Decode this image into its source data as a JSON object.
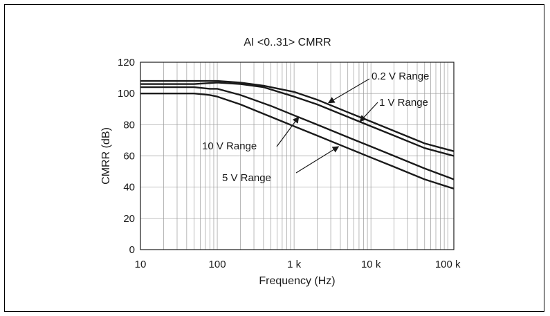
{
  "chart_data": {
    "type": "line",
    "title": "AI <0..31> CMRR",
    "xlabel": "Frequency (Hz)",
    "ylabel": "CMRR (dB)",
    "xscale": "log",
    "xlim": [
      10,
      120000
    ],
    "ylim": [
      0,
      120
    ],
    "grid": true,
    "x_ticks": [
      {
        "value": 10,
        "label": "10"
      },
      {
        "value": 100,
        "label": "100"
      },
      {
        "value": 1000,
        "label": "1 k"
      },
      {
        "value": 10000,
        "label": "10 k"
      },
      {
        "value": 100000,
        "label": "100 k"
      }
    ],
    "y_ticks": [
      {
        "value": 0,
        "label": "0"
      },
      {
        "value": 20,
        "label": "20"
      },
      {
        "value": 40,
        "label": "40"
      },
      {
        "value": 60,
        "label": "60"
      },
      {
        "value": 80,
        "label": "80"
      },
      {
        "value": 100,
        "label": "100"
      },
      {
        "value": 120,
        "label": "120"
      }
    ],
    "series": [
      {
        "name": "0.2 V Range",
        "color": "#1a1a1a",
        "points": [
          [
            10,
            108
          ],
          [
            50,
            108
          ],
          [
            100,
            108
          ],
          [
            200,
            107
          ],
          [
            400,
            105
          ],
          [
            1000,
            101
          ],
          [
            2000,
            96
          ],
          [
            5000,
            88
          ],
          [
            10000,
            82
          ],
          [
            20000,
            76
          ],
          [
            50000,
            68
          ],
          [
            120000,
            63
          ]
        ]
      },
      {
        "name": "1 V Range",
        "color": "#1a1a1a",
        "points": [
          [
            10,
            106
          ],
          [
            50,
            106
          ],
          [
            100,
            107
          ],
          [
            200,
            106
          ],
          [
            400,
            104
          ],
          [
            1000,
            98
          ],
          [
            2000,
            93
          ],
          [
            5000,
            85
          ],
          [
            10000,
            79
          ],
          [
            20000,
            73
          ],
          [
            50000,
            65
          ],
          [
            120000,
            60
          ]
        ]
      },
      {
        "name": "10 V Range",
        "color": "#1a1a1a",
        "points": [
          [
            10,
            104
          ],
          [
            50,
            104
          ],
          [
            80,
            103
          ],
          [
            100,
            103
          ],
          [
            200,
            99
          ],
          [
            500,
            92
          ],
          [
            1000,
            86
          ],
          [
            2000,
            80
          ],
          [
            5000,
            72
          ],
          [
            10000,
            66
          ],
          [
            20000,
            60
          ],
          [
            50000,
            52
          ],
          [
            120000,
            45
          ]
        ]
      },
      {
        "name": "5 V Range",
        "color": "#1a1a1a",
        "points": [
          [
            10,
            100
          ],
          [
            50,
            100
          ],
          [
            80,
            99
          ],
          [
            100,
            98
          ],
          [
            200,
            93
          ],
          [
            500,
            85
          ],
          [
            1000,
            79
          ],
          [
            2000,
            73
          ],
          [
            5000,
            65
          ],
          [
            10000,
            59
          ],
          [
            20000,
            53
          ],
          [
            50000,
            45
          ],
          [
            120000,
            39
          ]
        ]
      }
    ],
    "annotations": [
      {
        "label": "0.2 V Range",
        "series": 0
      },
      {
        "label": "1 V Range",
        "series": 1
      },
      {
        "label": "10 V Range",
        "series": 2
      },
      {
        "label": "5 V Range",
        "series": 3
      }
    ]
  }
}
